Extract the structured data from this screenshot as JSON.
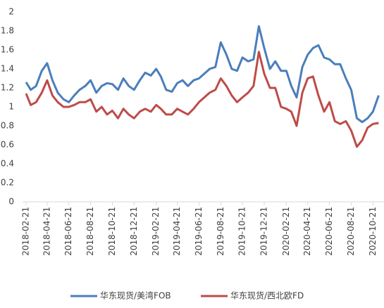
{
  "chart_data": {
    "type": "line",
    "x": [
      "2018-02-21",
      "2018-03-06",
      "2018-03-21",
      "2018-04-06",
      "2018-04-21",
      "2018-05-06",
      "2018-05-21",
      "2018-06-06",
      "2018-06-21",
      "2018-07-06",
      "2018-07-21",
      "2018-08-06",
      "2018-08-21",
      "2018-09-06",
      "2018-09-21",
      "2018-10-06",
      "2018-10-21",
      "2018-11-06",
      "2018-11-21",
      "2018-12-06",
      "2018-12-21",
      "2019-01-06",
      "2019-01-21",
      "2019-02-06",
      "2019-02-21",
      "2019-03-06",
      "2019-03-21",
      "2019-04-06",
      "2019-04-21",
      "2019-05-06",
      "2019-05-21",
      "2019-06-06",
      "2019-06-21",
      "2019-07-06",
      "2019-07-21",
      "2019-08-06",
      "2019-08-21",
      "2019-09-06",
      "2019-09-21",
      "2019-10-06",
      "2019-10-21",
      "2019-11-06",
      "2019-11-21",
      "2019-12-06",
      "2019-12-21",
      "2020-01-06",
      "2020-01-21",
      "2020-02-06",
      "2020-02-21",
      "2020-03-06",
      "2020-03-21",
      "2020-04-06",
      "2020-04-21",
      "2020-05-06",
      "2020-05-21",
      "2020-06-06",
      "2020-06-21",
      "2020-07-06",
      "2020-07-21",
      "2020-08-06",
      "2020-08-21",
      "2020-09-06",
      "2020-09-21",
      "2020-10-06",
      "2020-10-21",
      "2020-11-06"
    ],
    "series": [
      {
        "name": "华东现货/美湾FOB",
        "color": "#4a7ebb",
        "values": [
          1.26,
          1.18,
          1.22,
          1.38,
          1.46,
          1.28,
          1.15,
          1.08,
          1.05,
          1.12,
          1.18,
          1.22,
          1.28,
          1.15,
          1.22,
          1.25,
          1.24,
          1.18,
          1.3,
          1.22,
          1.18,
          1.28,
          1.36,
          1.33,
          1.4,
          1.32,
          1.18,
          1.16,
          1.25,
          1.28,
          1.22,
          1.28,
          1.3,
          1.35,
          1.4,
          1.42,
          1.68,
          1.55,
          1.4,
          1.38,
          1.52,
          1.48,
          1.5,
          1.85,
          1.62,
          1.4,
          1.48,
          1.38,
          1.38,
          1.22,
          1.1,
          1.42,
          1.55,
          1.62,
          1.65,
          1.52,
          1.5,
          1.45,
          1.45,
          1.3,
          1.18,
          0.88,
          0.84,
          0.88,
          0.95,
          1.12
        ]
      },
      {
        "name": "华东现货/西北欧FD",
        "color": "#be4b48",
        "values": [
          1.14,
          1.02,
          1.05,
          1.15,
          1.28,
          1.12,
          1.05,
          1.0,
          1.0,
          1.02,
          1.05,
          1.05,
          1.08,
          0.95,
          1.0,
          0.92,
          0.96,
          0.88,
          0.98,
          0.92,
          0.88,
          0.95,
          0.98,
          0.95,
          1.02,
          0.98,
          0.92,
          0.92,
          0.98,
          0.95,
          0.92,
          0.98,
          1.05,
          1.1,
          1.15,
          1.18,
          1.3,
          1.22,
          1.12,
          1.05,
          1.1,
          1.15,
          1.22,
          1.58,
          1.35,
          1.2,
          1.2,
          1.0,
          0.98,
          0.95,
          0.8,
          1.15,
          1.3,
          1.32,
          1.12,
          0.95,
          1.05,
          0.85,
          0.82,
          0.85,
          0.75,
          0.58,
          0.65,
          0.78,
          0.82,
          0.83
        ]
      }
    ],
    "xlim": [
      "2018-02-21",
      "2020-11-21"
    ],
    "xticks": [
      "2018-02-21",
      "2018-04-21",
      "2018-06-21",
      "2018-08-21",
      "2018-10-21",
      "2018-12-21",
      "2019-02-21",
      "2019-04-21",
      "2019-06-21",
      "2019-08-21",
      "2019-10-21",
      "2019-12-21",
      "2020-02-21",
      "2020-04-21",
      "2020-06-21",
      "2020-08-21",
      "2020-10-21"
    ],
    "ylim": [
      0,
      2
    ],
    "yticks": [
      0,
      0.2,
      0.4,
      0.6,
      0.8,
      1,
      1.2,
      1.4,
      1.6,
      1.8,
      2
    ],
    "legend": "bottom"
  }
}
